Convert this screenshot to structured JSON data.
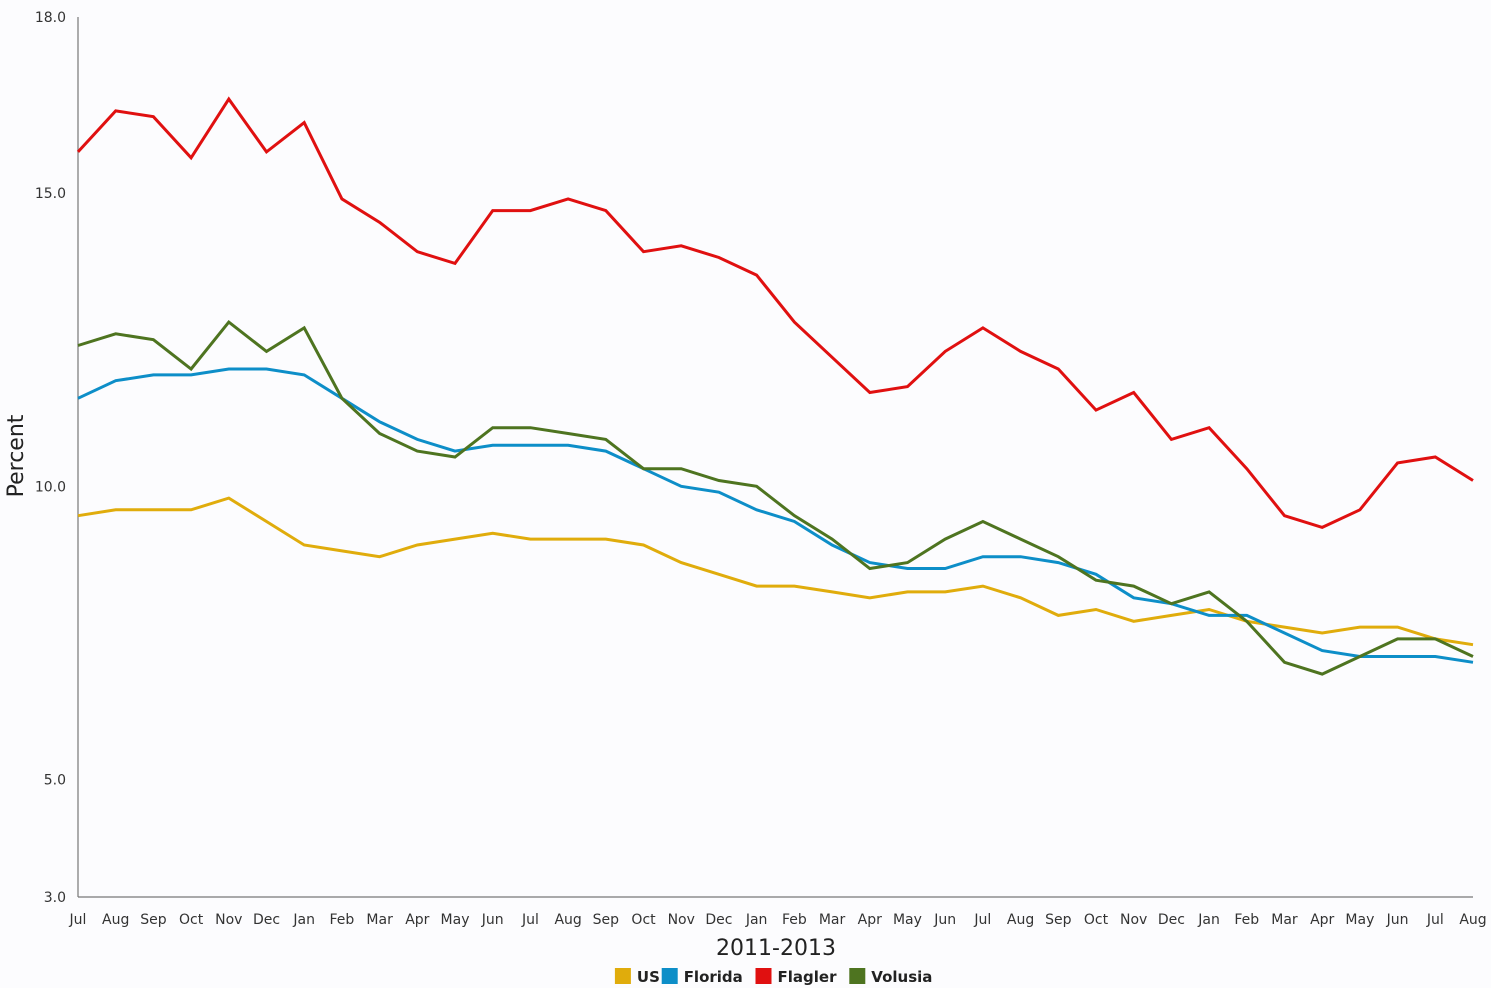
{
  "chart_data": {
    "type": "line",
    "title": "",
    "xlabel": "2011-2013",
    "ylabel": "Percent",
    "ylim": [
      3.0,
      18.0
    ],
    "yticks": [
      "3.0",
      "5.0",
      "10.0",
      "15.0",
      "18.0"
    ],
    "ytick_values": [
      3.0,
      5.0,
      10.0,
      15.0,
      18.0
    ],
    "legend_position": "bottom-center",
    "grid": false,
    "categories": [
      "Jul",
      "Aug",
      "Sep",
      "Oct",
      "Nov",
      "Dec",
      "Jan",
      "Feb",
      "Mar",
      "Apr",
      "May",
      "Jun",
      "Jul",
      "Aug",
      "Sep",
      "Oct",
      "Nov",
      "Dec",
      "Jan",
      "Feb",
      "Mar",
      "Apr",
      "May",
      "Jun",
      "Jul",
      "Aug",
      "Sep",
      "Oct",
      "Nov",
      "Dec",
      "Jan",
      "Feb",
      "Mar",
      "Apr",
      "May",
      "Jun",
      "Jul",
      "Aug"
    ],
    "series": [
      {
        "name": "US",
        "color": "#e0ac0c",
        "values": [
          9.5,
          9.6,
          9.6,
          9.6,
          9.8,
          9.4,
          9.0,
          8.9,
          8.8,
          9.0,
          9.1,
          9.2,
          9.1,
          9.1,
          9.1,
          9.0,
          8.7,
          8.5,
          8.3,
          8.3,
          8.2,
          8.1,
          8.2,
          8.2,
          8.3,
          8.1,
          7.8,
          7.9,
          7.7,
          7.8,
          7.9,
          7.7,
          7.6,
          7.5,
          7.6,
          7.6,
          7.4,
          7.3
        ]
      },
      {
        "name": "Florida",
        "color": "#0d8ec8",
        "values": [
          11.5,
          11.8,
          11.9,
          11.9,
          12.0,
          12.0,
          11.9,
          11.5,
          11.1,
          10.8,
          10.6,
          10.7,
          10.7,
          10.7,
          10.6,
          10.3,
          10.0,
          9.9,
          9.6,
          9.4,
          9.0,
          8.7,
          8.6,
          8.6,
          8.8,
          8.8,
          8.7,
          8.5,
          8.1,
          8.0,
          7.8,
          7.8,
          7.5,
          7.2,
          7.1,
          7.1,
          7.1,
          7.0
        ]
      },
      {
        "name": "Flagler",
        "color": "#e01010",
        "values": [
          15.7,
          16.4,
          16.3,
          15.6,
          16.6,
          15.7,
          16.2,
          14.9,
          14.5,
          14.0,
          13.8,
          14.7,
          14.7,
          14.9,
          14.7,
          14.0,
          14.1,
          13.9,
          13.6,
          12.8,
          12.2,
          11.6,
          11.7,
          12.3,
          12.7,
          12.3,
          12.0,
          11.3,
          11.6,
          10.8,
          11.0,
          10.3,
          9.5,
          9.3,
          9.6,
          10.4,
          10.5,
          10.1
        ]
      },
      {
        "name": "Volusia",
        "color": "#4e7420",
        "values": [
          12.4,
          12.6,
          12.5,
          12.0,
          12.8,
          12.3,
          12.7,
          11.5,
          10.9,
          10.6,
          10.5,
          11.0,
          11.0,
          10.9,
          10.8,
          10.3,
          10.3,
          10.1,
          10.0,
          9.5,
          9.1,
          8.6,
          8.7,
          9.1,
          9.4,
          9.1,
          8.8,
          8.4,
          8.3,
          8.0,
          8.2,
          7.7,
          7.0,
          6.8,
          7.1,
          7.4,
          7.4,
          7.1
        ]
      }
    ]
  }
}
